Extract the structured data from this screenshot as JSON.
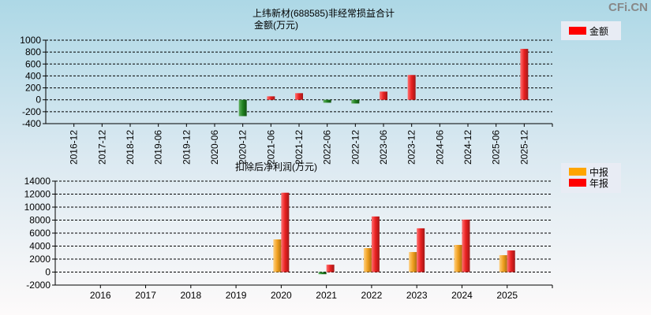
{
  "watermark": "CFi.CN",
  "chart_data": [
    {
      "type": "bar",
      "title": "上纬新材(688585)非经常损益合计",
      "ylabel": "金额(万元)",
      "legend": [
        {
          "name": "金额",
          "color": "#ff0000"
        }
      ],
      "categories": [
        "2016-12",
        "2017-12",
        "2018-12",
        "2019-06",
        "2019-12",
        "2020-06",
        "2020-12",
        "2021-06",
        "2021-12",
        "2022-06",
        "2022-12",
        "2023-06",
        "2023-12",
        "2024-06",
        "2024-12",
        "2025-06",
        "2025-12"
      ],
      "values": [
        null,
        null,
        null,
        null,
        null,
        null,
        -274,
        58,
        111,
        -49,
        -62,
        137,
        416,
        null,
        null,
        null,
        854
      ],
      "ylim": [
        -400,
        1000
      ],
      "yticks": [
        1000,
        800,
        600,
        400,
        200,
        0,
        -200,
        -400
      ],
      "grid": true,
      "legend_position": "top-right"
    },
    {
      "type": "bar",
      "title": "扣除后净利润(万元)",
      "legend": [
        {
          "name": "中报",
          "color": "#ffa500"
        },
        {
          "name": "年报",
          "color": "#ff0000"
        }
      ],
      "categories": [
        "2016",
        "2017",
        "2018",
        "2019",
        "2020",
        "2021",
        "2022",
        "2023",
        "2024",
        "2025"
      ],
      "series": [
        {
          "name": "中报",
          "values": [
            null,
            null,
            null,
            null,
            5030,
            -325,
            3690,
            3085,
            4180,
            2600
          ]
        },
        {
          "name": "年报",
          "values": [
            null,
            null,
            null,
            null,
            12215,
            1136,
            8560,
            6740,
            8075,
            3330
          ]
        }
      ],
      "ylim": [
        -2000,
        14000
      ],
      "yticks": [
        14000,
        12000,
        10000,
        8000,
        6000,
        4000,
        2000,
        0,
        -2000
      ],
      "grid": true,
      "legend_position": "top-right"
    }
  ]
}
